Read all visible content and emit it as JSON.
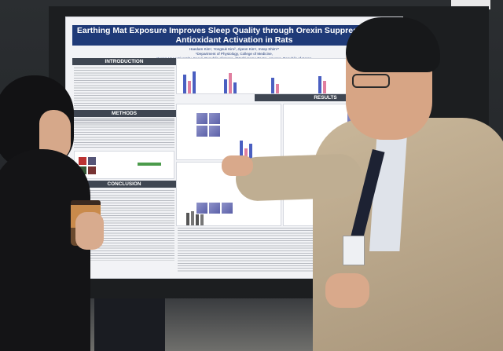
{
  "poster": {
    "title_line1": "Earthing Mat Exposure Improves Sleep Quality through Orexin Suppression and",
    "title_line2": "Antioxidant Activation in Rats",
    "authors": "Haedam Kim¹, Yongsuk Kim², Jiyeon Kim¹, Insop Shim¹*",
    "affiliation1": "¹Department of Physiology, College of Medicine,",
    "affiliation2": "Kyung Hee University, Seoul, Republic of Korea, ²World Home Dr Co.,Anyang, Republic of Korea",
    "sections": {
      "introduction": "INTRODUCTION",
      "results": "RESULTS",
      "methods": "METHODS",
      "conclusion": "CONCLUSION"
    },
    "colors": {
      "title_bg": "#1f3a78",
      "section_bg": "#3f4652",
      "chart_blue": "#4a5fc1",
      "chart_pink": "#e07fa0"
    }
  },
  "cup_label": "",
  "scene_colors": {
    "jacket": "#c2b194",
    "wall": "#2b2e31"
  }
}
